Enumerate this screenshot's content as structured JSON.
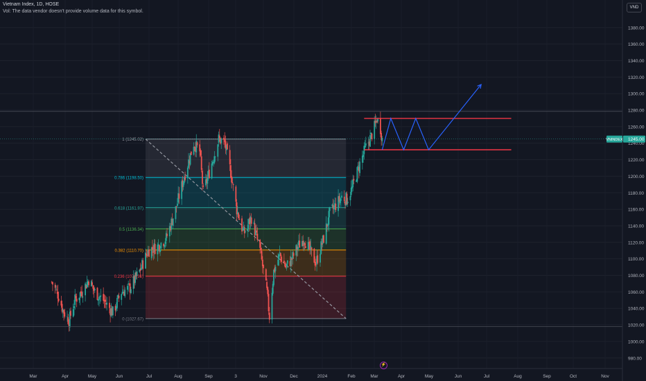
{
  "header": {
    "title": "Vietnam Index, 1D, HOSE",
    "volume_note": "Vol: The data vendor doesn't provide volume data for this symbol."
  },
  "currency_button": "VND",
  "live_icon": "lightning-icon",
  "chart_data": {
    "type": "candlestick",
    "symbol": "VNINDEX",
    "last_price_label": "VNINDEX",
    "last_price": "1245.00",
    "y_ticks": [
      "1380.00",
      "1360.00",
      "1340.00",
      "1320.00",
      "1300.00",
      "1280.00",
      "1260.00",
      "1240.00",
      "1220.00",
      "1200.00",
      "1180.00",
      "1160.00",
      "1140.00",
      "1120.00",
      "1100.00",
      "1080.00",
      "1060.00",
      "1040.00",
      "1020.00",
      "1000.00",
      "980.00"
    ],
    "x_ticks": [
      "Mar",
      "Apr",
      "May",
      "Jun",
      "Jul",
      "Aug",
      "Sep",
      "3",
      "Nov",
      "Dec",
      "2024",
      "Feb",
      "Mar",
      "Apr",
      "May",
      "Jun",
      "Jul",
      "Aug",
      "Sep",
      "Oct",
      "Nov"
    ],
    "ylim": [
      970,
      1395
    ],
    "price_path": [
      [
        "2023-02-23",
        1072
      ],
      [
        "2023-03-03",
        1055
      ],
      [
        "2023-03-08",
        1038
      ],
      [
        "2023-03-15",
        1025
      ],
      [
        "2023-03-22",
        1050
      ],
      [
        "2023-03-31",
        1062
      ],
      [
        "2023-04-07",
        1075
      ],
      [
        "2023-04-14",
        1060
      ],
      [
        "2023-04-24",
        1050
      ],
      [
        "2023-05-05",
        1035
      ],
      [
        "2023-05-15",
        1060
      ],
      [
        "2023-05-25",
        1065
      ],
      [
        "2023-06-05",
        1085
      ],
      [
        "2023-06-15",
        1110
      ],
      [
        "2023-06-26",
        1115
      ],
      [
        "2023-07-06",
        1125
      ],
      [
        "2023-07-17",
        1160
      ],
      [
        "2023-07-27",
        1200
      ],
      [
        "2023-08-07",
        1240
      ],
      [
        "2023-08-14",
        1230
      ],
      [
        "2023-08-18",
        1180
      ],
      [
        "2023-08-25",
        1205
      ],
      [
        "2023-09-05",
        1245
      ],
      [
        "2023-09-12",
        1240
      ],
      [
        "2023-09-19",
        1205
      ],
      [
        "2023-09-26",
        1160
      ],
      [
        "2023-10-04",
        1130
      ],
      [
        "2023-10-13",
        1150
      ],
      [
        "2023-10-23",
        1110
      ],
      [
        "2023-10-31",
        1060
      ],
      [
        "2023-11-03",
        1030
      ],
      [
        "2023-11-08",
        1085
      ],
      [
        "2023-11-15",
        1105
      ],
      [
        "2023-11-22",
        1090
      ],
      [
        "2023-11-29",
        1100
      ],
      [
        "2023-12-06",
        1115
      ],
      [
        "2023-12-13",
        1125
      ],
      [
        "2023-12-20",
        1110
      ],
      [
        "2023-12-27",
        1095
      ],
      [
        "2024-01-05",
        1125
      ],
      [
        "2024-01-12",
        1155
      ],
      [
        "2024-01-19",
        1165
      ],
      [
        "2024-01-26",
        1175
      ],
      [
        "2024-02-01",
        1172
      ],
      [
        "2024-02-07",
        1185
      ],
      [
        "2024-02-16",
        1215
      ],
      [
        "2024-02-23",
        1235
      ],
      [
        "2024-02-29",
        1248
      ],
      [
        "2024-03-05",
        1262
      ],
      [
        "2024-03-07",
        1270
      ],
      [
        "2024-03-11",
        1258
      ],
      [
        "2024-03-13",
        1245
      ]
    ],
    "fibonacci": {
      "start_date": "2023-06-12",
      "end_date": "2024-01-31",
      "levels": [
        {
          "ratio": "1",
          "value": 1245.02,
          "label": "1 (1245.02)",
          "color": "#9598a1",
          "fill": "rgba(120,123,134,0.18)"
        },
        {
          "ratio": "0.786",
          "value": 1198.5,
          "label": "0.786 (1198.50)",
          "color": "#00bcd4",
          "fill": "rgba(0,188,212,0.18)"
        },
        {
          "ratio": "0.618",
          "value": 1161.97,
          "label": "0.618 (1161.97)",
          "color": "#26a69a",
          "fill": "rgba(38,166,154,0.18)"
        },
        {
          "ratio": "0.5",
          "value": 1136.34,
          "label": "0.5 (1136.34)",
          "color": "#4caf50",
          "fill": "rgba(76,175,80,0.18)"
        },
        {
          "ratio": "0.382",
          "value": 1110.7,
          "label": "0.382 (1110.70)",
          "color": "#ff9800",
          "fill": "rgba(255,152,0,0.18)"
        },
        {
          "ratio": "0.236",
          "value": 1078.96,
          "label": "0.236 (1078.96)",
          "color": "#f23645",
          "fill": "rgba(242,54,69,0.18)"
        },
        {
          "ratio": "0",
          "value": 1027.67,
          "label": "0 (1027.67)",
          "color": "#787b86",
          "fill": "rgba(242,54,69,0.18)"
        }
      ],
      "trend_line": [
        [
          "2023-06-12",
          1245.02
        ],
        [
          "2024-01-31",
          1027.67
        ]
      ]
    },
    "channel": {
      "color": "#f23645",
      "lines": [
        [
          [
            "2024-02-21",
            1270
          ],
          [
            "2024-08-10",
            1270
          ]
        ],
        [
          [
            "2024-02-21",
            1232
          ],
          [
            "2024-08-10",
            1232
          ]
        ]
      ]
    },
    "projection": {
      "color": "#2962ff",
      "points": [
        [
          "2024-03-13",
          1232
        ],
        [
          "2024-03-23",
          1270
        ],
        [
          "2024-04-07",
          1232
        ],
        [
          "2024-04-21",
          1270
        ],
        [
          "2024-05-06",
          1232
        ],
        [
          "2024-07-06",
          1311
        ]
      ]
    },
    "horizontal_line": 1278.5,
    "lower_bound_line": 1018
  }
}
